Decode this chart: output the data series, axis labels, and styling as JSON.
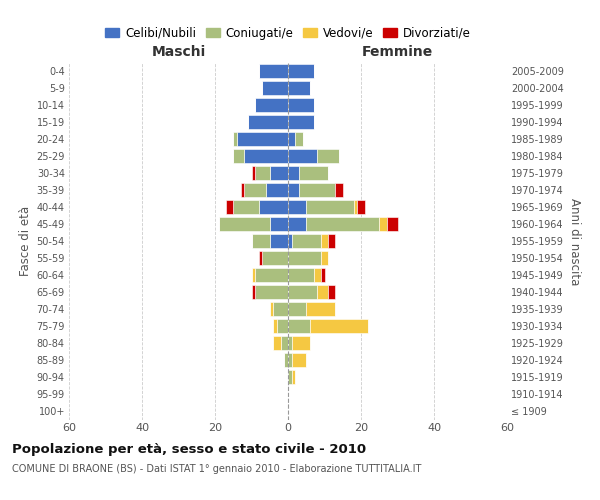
{
  "age_groups": [
    "100+",
    "95-99",
    "90-94",
    "85-89",
    "80-84",
    "75-79",
    "70-74",
    "65-69",
    "60-64",
    "55-59",
    "50-54",
    "45-49",
    "40-44",
    "35-39",
    "30-34",
    "25-29",
    "20-24",
    "15-19",
    "10-14",
    "5-9",
    "0-4"
  ],
  "birth_years": [
    "≤ 1909",
    "1910-1914",
    "1915-1919",
    "1920-1924",
    "1925-1929",
    "1930-1934",
    "1935-1939",
    "1940-1944",
    "1945-1949",
    "1950-1954",
    "1955-1959",
    "1960-1964",
    "1965-1969",
    "1970-1974",
    "1975-1979",
    "1980-1984",
    "1985-1989",
    "1990-1994",
    "1995-1999",
    "2000-2004",
    "2005-2009"
  ],
  "maschi": {
    "celibi": [
      0,
      0,
      0,
      0,
      0,
      0,
      0,
      0,
      0,
      0,
      5,
      5,
      8,
      6,
      5,
      12,
      14,
      11,
      9,
      7,
      8
    ],
    "coniugati": [
      0,
      0,
      0,
      1,
      2,
      3,
      4,
      9,
      9,
      7,
      5,
      14,
      7,
      6,
      4,
      3,
      1,
      0,
      0,
      0,
      0
    ],
    "vedovi": [
      0,
      0,
      0,
      0,
      2,
      1,
      1,
      0,
      1,
      0,
      0,
      0,
      0,
      0,
      0,
      0,
      0,
      0,
      0,
      0,
      0
    ],
    "divorziati": [
      0,
      0,
      0,
      0,
      0,
      0,
      0,
      1,
      0,
      1,
      0,
      0,
      2,
      1,
      1,
      0,
      0,
      0,
      0,
      0,
      0
    ]
  },
  "femmine": {
    "nubili": [
      0,
      0,
      0,
      0,
      0,
      0,
      0,
      0,
      0,
      0,
      1,
      5,
      5,
      3,
      3,
      8,
      2,
      7,
      7,
      6,
      7
    ],
    "coniugate": [
      0,
      0,
      1,
      1,
      1,
      6,
      5,
      8,
      7,
      9,
      8,
      20,
      13,
      10,
      8,
      6,
      2,
      0,
      0,
      0,
      0
    ],
    "vedove": [
      0,
      0,
      1,
      4,
      5,
      16,
      8,
      3,
      2,
      2,
      2,
      2,
      1,
      0,
      0,
      0,
      0,
      0,
      0,
      0,
      0
    ],
    "divorziate": [
      0,
      0,
      0,
      0,
      0,
      0,
      0,
      2,
      1,
      0,
      2,
      3,
      2,
      2,
      0,
      0,
      0,
      0,
      0,
      0,
      0
    ]
  },
  "colors": {
    "celibi": "#4472C4",
    "coniugati": "#AABF7E",
    "vedovi": "#F5C842",
    "divorziati": "#CC0000"
  },
  "xlim": 60,
  "title": "Popolazione per età, sesso e stato civile - 2010",
  "subtitle": "COMUNE DI BRAONE (BS) - Dati ISTAT 1° gennaio 2010 - Elaborazione TUTTITALIA.IT",
  "ylabel_left": "Fasce di età",
  "ylabel_right": "Anni di nascita",
  "xlabel_maschi": "Maschi",
  "xlabel_femmine": "Femmine",
  "legend_labels": [
    "Celibi/Nubili",
    "Coniugati/e",
    "Vedovi/e",
    "Divorziati/e"
  ],
  "bg_color": "#FFFFFF",
  "grid_color": "#CCCCCC"
}
